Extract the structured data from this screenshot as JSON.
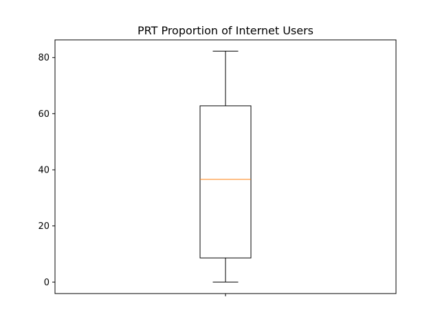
{
  "chart_data": {
    "type": "box",
    "title": "PRT Proportion of Internet Users",
    "xlabel": "",
    "ylabel": "",
    "ylim": [
      -4.1,
      86.3
    ],
    "yticks": [
      0,
      20,
      40,
      60,
      80
    ],
    "grid": false,
    "box": {
      "whisker_low": 0,
      "q1": 8.6,
      "median": 36.6,
      "q3": 62.8,
      "whisker_high": 82.3
    },
    "colors": {
      "median": "#ff7f0e",
      "box": "#000000"
    }
  }
}
